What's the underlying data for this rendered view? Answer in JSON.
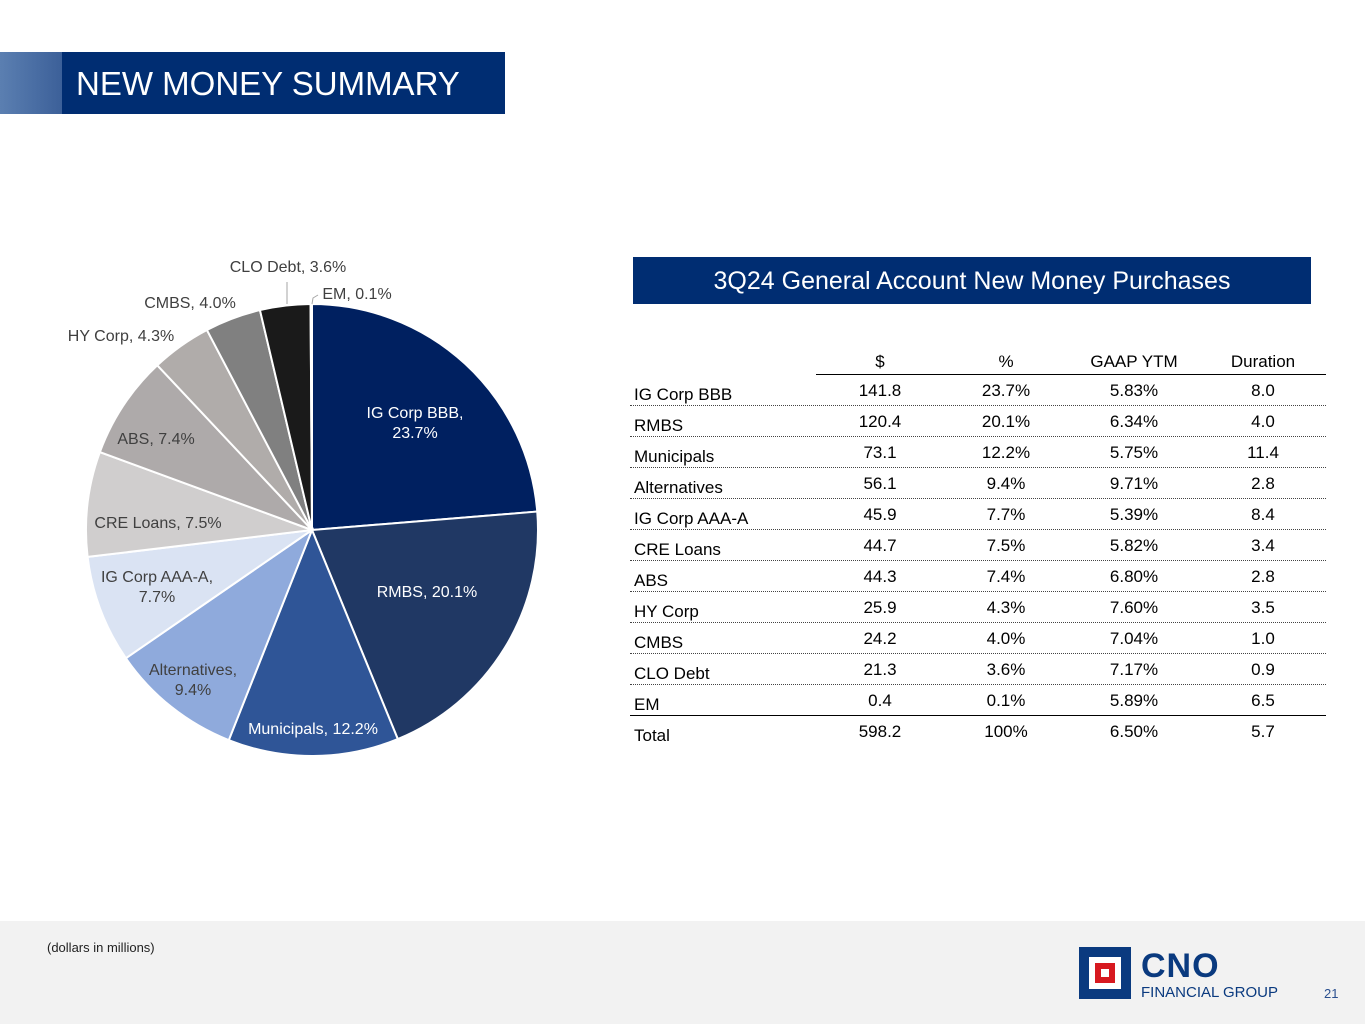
{
  "slide": {
    "title": "NEW MONEY SUMMARY",
    "footnote": "(dollars in millions)",
    "page_number": "21"
  },
  "logo": {
    "name": "CNO",
    "subtitle": "FINANCIAL GROUP"
  },
  "table": {
    "title": "3Q24 General Account New Money Purchases",
    "columns": [
      "$",
      "%",
      "GAAP YTM",
      "Duration"
    ],
    "rows": [
      {
        "label": "IG Corp BBB",
        "amount": "141.8",
        "pct": "23.7%",
        "ytm": "5.83%",
        "duration": "8.0"
      },
      {
        "label": "RMBS",
        "amount": "120.4",
        "pct": "20.1%",
        "ytm": "6.34%",
        "duration": "4.0"
      },
      {
        "label": "Municipals",
        "amount": "73.1",
        "pct": "12.2%",
        "ytm": "5.75%",
        "duration": "11.4"
      },
      {
        "label": "Alternatives",
        "amount": "56.1",
        "pct": "9.4%",
        "ytm": "9.71%",
        "duration": "2.8"
      },
      {
        "label": "IG Corp AAA-A",
        "amount": "45.9",
        "pct": "7.7%",
        "ytm": "5.39%",
        "duration": "8.4"
      },
      {
        "label": "CRE Loans",
        "amount": "44.7",
        "pct": "7.5%",
        "ytm": "5.82%",
        "duration": "3.4"
      },
      {
        "label": "ABS",
        "amount": "44.3",
        "pct": "7.4%",
        "ytm": "6.80%",
        "duration": "2.8"
      },
      {
        "label": "HY Corp",
        "amount": "25.9",
        "pct": "4.3%",
        "ytm": "7.60%",
        "duration": "3.5"
      },
      {
        "label": "CMBS",
        "amount": "24.2",
        "pct": "4.0%",
        "ytm": "7.04%",
        "duration": "1.0"
      },
      {
        "label": "CLO Debt",
        "amount": "21.3",
        "pct": "3.6%",
        "ytm": "7.17%",
        "duration": "0.9"
      },
      {
        "label": "EM",
        "amount": "0.4",
        "pct": "0.1%",
        "ytm": "5.89%",
        "duration": "6.5"
      }
    ],
    "total": {
      "label": "Total",
      "amount": "598.2",
      "pct": "100%",
      "ytm": "6.50%",
      "duration": "5.7"
    }
  },
  "chart_data": {
    "type": "pie",
    "title": "",
    "slices": [
      {
        "label": "IG Corp BBB",
        "value": 23.7,
        "display": [
          "IG Corp BBB,",
          "23.7%"
        ],
        "color": "#002060",
        "text_color": "#ffffff"
      },
      {
        "label": "RMBS",
        "value": 20.1,
        "display": [
          "RMBS, 20.1%"
        ],
        "color": "#203864",
        "text_color": "#ffffff"
      },
      {
        "label": "Municipals",
        "value": 12.2,
        "display": [
          "Municipals, 12.2%"
        ],
        "color": "#2f5597",
        "text_color": "#ffffff"
      },
      {
        "label": "Alternatives",
        "value": 9.4,
        "display": [
          "Alternatives,",
          "9.4%"
        ],
        "color": "#8faadc",
        "text_color": "#404040"
      },
      {
        "label": "IG Corp AAA-A",
        "value": 7.7,
        "display": [
          "IG Corp AAA-A,",
          "7.7%"
        ],
        "color": "#dae3f3",
        "text_color": "#404040"
      },
      {
        "label": "CRE Loans",
        "value": 7.5,
        "display": [
          "CRE Loans, 7.5%"
        ],
        "color": "#d0cece",
        "text_color": "#404040"
      },
      {
        "label": "ABS",
        "value": 7.4,
        "display": [
          "ABS, 7.4%"
        ],
        "color": "#aeaaaa",
        "text_color": "#404040"
      },
      {
        "label": "HY Corp",
        "value": 4.3,
        "display": [
          "HY Corp, 4.3%"
        ],
        "color": "#b0acaa",
        "text_color": "#404040"
      },
      {
        "label": "CMBS",
        "value": 4.0,
        "display": [
          "CMBS, 4.0%"
        ],
        "color": "#808080",
        "text_color": "#404040"
      },
      {
        "label": "CLO Debt",
        "value": 3.6,
        "display": [
          "CLO Debt, 3.6%"
        ],
        "color": "#1a1a1a",
        "text_color": "#404040"
      },
      {
        "label": "EM",
        "value": 0.1,
        "display": [
          "EM, 0.1%"
        ],
        "color": "#595959",
        "text_color": "#404040"
      }
    ]
  }
}
